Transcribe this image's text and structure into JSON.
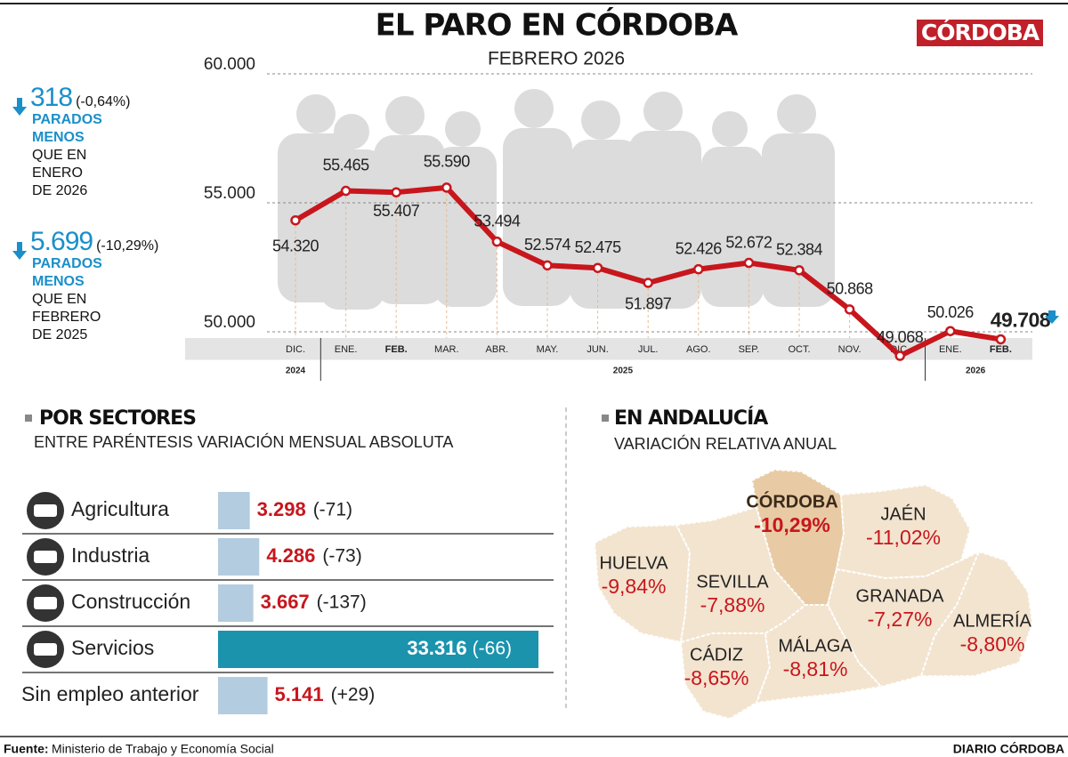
{
  "header": {
    "title": "EL PARO EN CÓRDOBA",
    "subtitle": "FEBRERO 2026",
    "logo": "CÓRDOBA"
  },
  "stats": [
    {
      "value": "318",
      "change": "(-0,64%)",
      "highlight": "PARADOS MENOS",
      "text": "QUE EN ENERO DE 2026"
    },
    {
      "value": "5.699",
      "change": "(-10,29%)",
      "highlight": "PARADOS MENOS",
      "text": "QUE EN FEBRERO DE 2025"
    }
  ],
  "chart_data": [
    {
      "type": "line",
      "categories": [
        "DIC.",
        "ENE.",
        "FEB.",
        "MAR.",
        "ABR.",
        "MAY.",
        "JUN.",
        "JUL.",
        "AGO.",
        "SEP.",
        "OCT.",
        "NOV.",
        "DIC.",
        "ENE.",
        "FEB."
      ],
      "year_labels": [
        "2024",
        "2025",
        "2026"
      ],
      "values": [
        54320,
        55465,
        55407,
        55590,
        53494,
        52574,
        52475,
        51897,
        52426,
        52672,
        52384,
        50868,
        49068,
        50026,
        49708
      ],
      "value_labels": [
        "54.320",
        "55.465",
        "55.407",
        "55.590",
        "53.494",
        "52.574",
        "52.475",
        "51.897",
        "52.426",
        "52.672",
        "52.384",
        "50.868",
        "49.068",
        "50.026",
        "49.708"
      ],
      "color": "#c8161d",
      "ylim": [
        50000,
        60000
      ],
      "yticks": [
        {
          "value": 50000,
          "label": "50.000"
        },
        {
          "value": 55000,
          "label": "55.000"
        },
        {
          "value": 60000,
          "label": "60.000"
        }
      ],
      "grid": true
    },
    {
      "type": "bar",
      "title": "POR SECTORES",
      "subtitle": "ENTRE PARÉNTESIS VARIACIÓN MENSUAL ABSOLUTA",
      "categories": [
        "Agricultura",
        "Industria",
        "Construcción",
        "Servicios",
        "Sin empleo anterior"
      ],
      "values": [
        3298,
        4286,
        3667,
        33316,
        5141
      ],
      "value_labels": [
        "3.298",
        "4.286",
        "3.667",
        "33.316",
        "5.141"
      ],
      "change_labels": [
        "(-71)",
        "(-73)",
        "(-137)",
        "(-66)",
        "(+29)"
      ],
      "color": "#b3ccdf",
      "highlight_color": "#1b93ad",
      "highlight": "Servicios"
    }
  ],
  "map": {
    "title": "EN ANDALUCÍA",
    "subtitle": "VARIACIÓN RELATIVA ANUAL",
    "regions": [
      {
        "name": "HUELVA",
        "label": "-9,84%"
      },
      {
        "name": "SEVILLA",
        "label": "-7,88%"
      },
      {
        "name": "CÓRDOBA",
        "label": "-10,29%"
      },
      {
        "name": "JAÉN",
        "label": "-11,02%"
      },
      {
        "name": "GRANADA",
        "label": "-7,27%"
      },
      {
        "name": "ALMERÍA",
        "label": "-8,80%"
      },
      {
        "name": "CÁDIZ",
        "label": "-8,65%"
      },
      {
        "name": "MÁLAGA",
        "label": "-8,81%"
      }
    ]
  },
  "footer": {
    "source_label": "Fuente:",
    "source": "Ministerio de Trabajo y Economía Social",
    "credit": "DIARIO CÓRDOBA"
  }
}
